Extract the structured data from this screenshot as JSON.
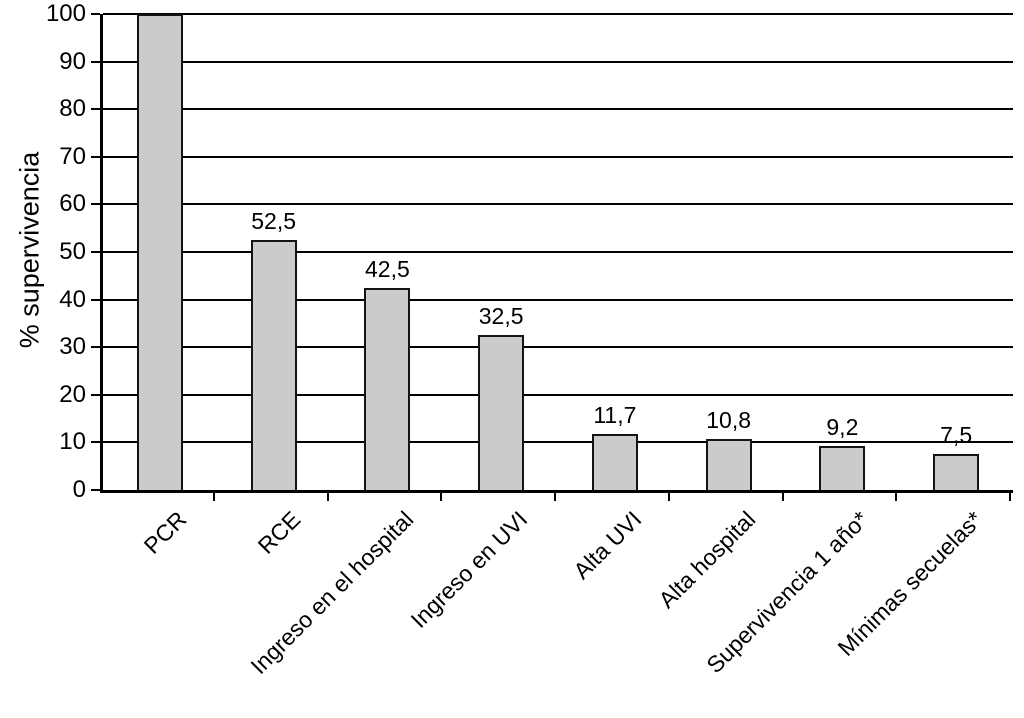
{
  "chart_data": {
    "type": "bar",
    "title": "",
    "xlabel": "",
    "ylabel": "% supervivencia",
    "ylim": [
      0,
      100
    ],
    "ytick_step": 10,
    "yticks": [
      0,
      10,
      20,
      30,
      40,
      50,
      60,
      70,
      80,
      90,
      100
    ],
    "grid": "horizontal",
    "legend_position": "none",
    "categories": [
      "PCR",
      "RCE",
      "Ingreso en el hospital",
      "Ingreso en UVI",
      "Alta UVI",
      "Alta hospital",
      "Supervivencia 1 año*",
      "Mínimas secuelas*"
    ],
    "values": [
      100,
      52.5,
      42.5,
      32.5,
      11.7,
      10.8,
      9.2,
      7.5
    ],
    "value_labels": [
      "",
      "52,5",
      "42,5",
      "32,5",
      "11,7",
      "10,8",
      "9,2",
      "7,5"
    ],
    "bar_color": "#cbcbcb",
    "bar_border_color": "#141414",
    "axis_color": "#000000"
  }
}
